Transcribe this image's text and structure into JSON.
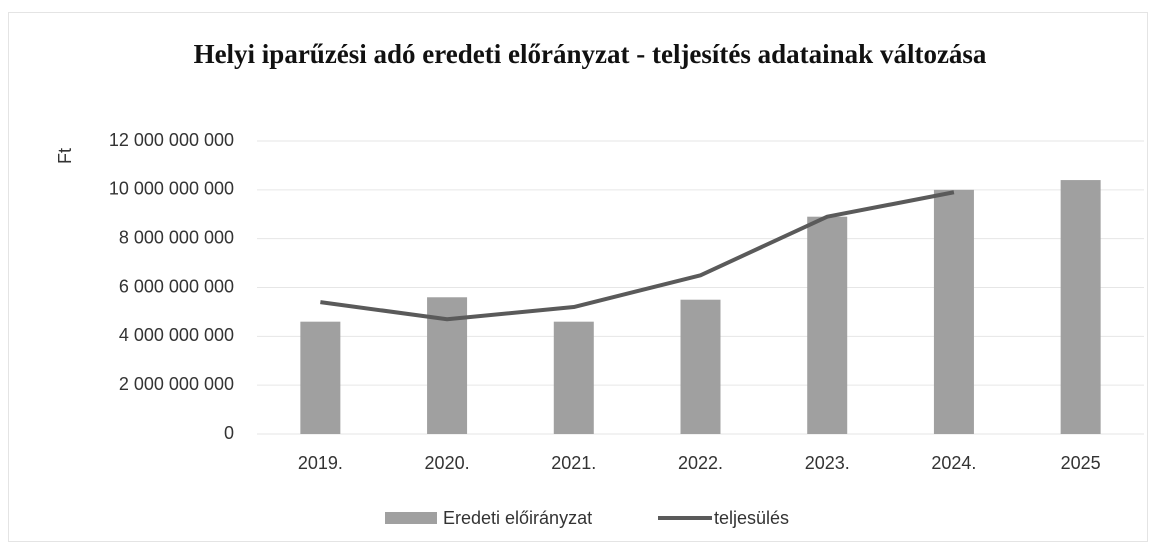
{
  "chart_data": {
    "type": "combo",
    "title": "Helyi iparűzési adó eredeti előrányzat - teljesítés adatainak változása",
    "y_label": "Ft",
    "categories": [
      "2019.",
      "2020.",
      "2021.",
      "2022.",
      "2023.",
      "2024.",
      "2025"
    ],
    "series": [
      {
        "name": "Eredeti előirányzat",
        "type": "bar",
        "color": "#a0a0a0",
        "values": [
          4600000000,
          5600000000,
          4600000000,
          5500000000,
          8900000000,
          10000000000,
          10400000000
        ]
      },
      {
        "name": "teljesülés",
        "type": "line",
        "color": "#5a5a5a",
        "values": [
          5400000000,
          4700000000,
          5200000000,
          6500000000,
          8900000000,
          9900000000,
          null
        ]
      }
    ],
    "ylim": [
      0,
      12000000000
    ],
    "yticks": [
      0,
      {
        "value": 2000000000,
        "label": "2 000 000 000"
      },
      {
        "value": 4000000000,
        "label": "4 000 000 000"
      },
      {
        "value": 6000000000,
        "label": "6 000 000 000"
      },
      {
        "value": 8000000000,
        "label": "8 000 000 000"
      },
      {
        "value": 10000000000,
        "label": "10 000 000 000"
      },
      {
        "value": 12000000000,
        "label": "12 000 000 000"
      }
    ],
    "grid": true,
    "legend": "bottom"
  }
}
